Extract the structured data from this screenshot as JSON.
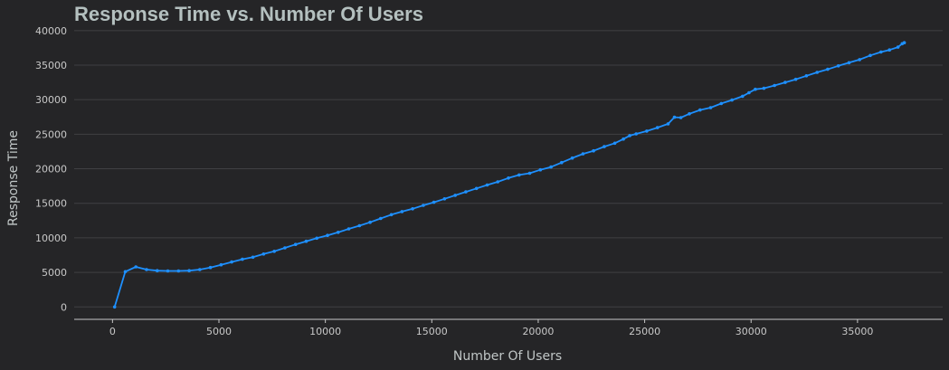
{
  "chart_data": {
    "type": "line",
    "title": "Response Time vs. Number Of Users",
    "xlabel": "Number Of Users",
    "ylabel": "Response Time",
    "xlim": [
      -1800,
      39000
    ],
    "ylim": [
      -1800,
      40500
    ],
    "xticks": [
      0,
      5000,
      10000,
      15000,
      20000,
      25000,
      30000,
      35000
    ],
    "yticks": [
      0,
      5000,
      10000,
      15000,
      20000,
      25000,
      30000,
      35000,
      40000
    ],
    "grid": "horizontal",
    "colors": {
      "background": "#252527",
      "line": "#1e90ff",
      "grid": "#404043",
      "text": "#c8c8c8",
      "title": "#b4c0bf"
    },
    "series": [
      {
        "x": [
          100,
          600,
          1100,
          1600,
          2100,
          2600,
          3100,
          3600,
          4100,
          4600,
          5100,
          5600,
          6100,
          6600,
          7100,
          7600,
          8100,
          8600,
          9100,
          9600,
          10100,
          10600,
          11100,
          11600,
          12100,
          12600,
          13100,
          13600,
          14100,
          14600,
          15100,
          15600,
          16100,
          16600,
          17100,
          17600,
          18100,
          18600,
          19100,
          19600,
          20100,
          20600,
          21100,
          21600,
          22100,
          22600,
          23100,
          23600,
          24000,
          24300,
          24600,
          25100,
          25600,
          26100,
          26400,
          26700,
          27100,
          27600,
          28100,
          28600,
          29100,
          29600,
          29900,
          30200,
          30600,
          31100,
          31600,
          32100,
          32600,
          33100,
          33600,
          34100,
          34600,
          35100,
          35600,
          36100,
          36500,
          36900,
          37100,
          37200
        ],
        "y": [
          0,
          5100,
          5800,
          5400,
          5250,
          5200,
          5200,
          5250,
          5400,
          5700,
          6100,
          6500,
          6900,
          7200,
          7650,
          8050,
          8550,
          9050,
          9500,
          9950,
          10350,
          10800,
          11300,
          11750,
          12250,
          12800,
          13350,
          13800,
          14200,
          14700,
          15150,
          15650,
          16150,
          16650,
          17150,
          17650,
          18100,
          18650,
          19100,
          19350,
          19850,
          20250,
          20900,
          21550,
          22150,
          22600,
          23200,
          23700,
          24300,
          24800,
          25050,
          25450,
          25950,
          26500,
          27450,
          27400,
          27950,
          28500,
          28850,
          29450,
          29950,
          30500,
          31000,
          31500,
          31650,
          32050,
          32500,
          32950,
          33450,
          33950,
          34400,
          34900,
          35350,
          35800,
          36400,
          36900,
          37200,
          37600,
          38100,
          38250
        ]
      }
    ]
  }
}
